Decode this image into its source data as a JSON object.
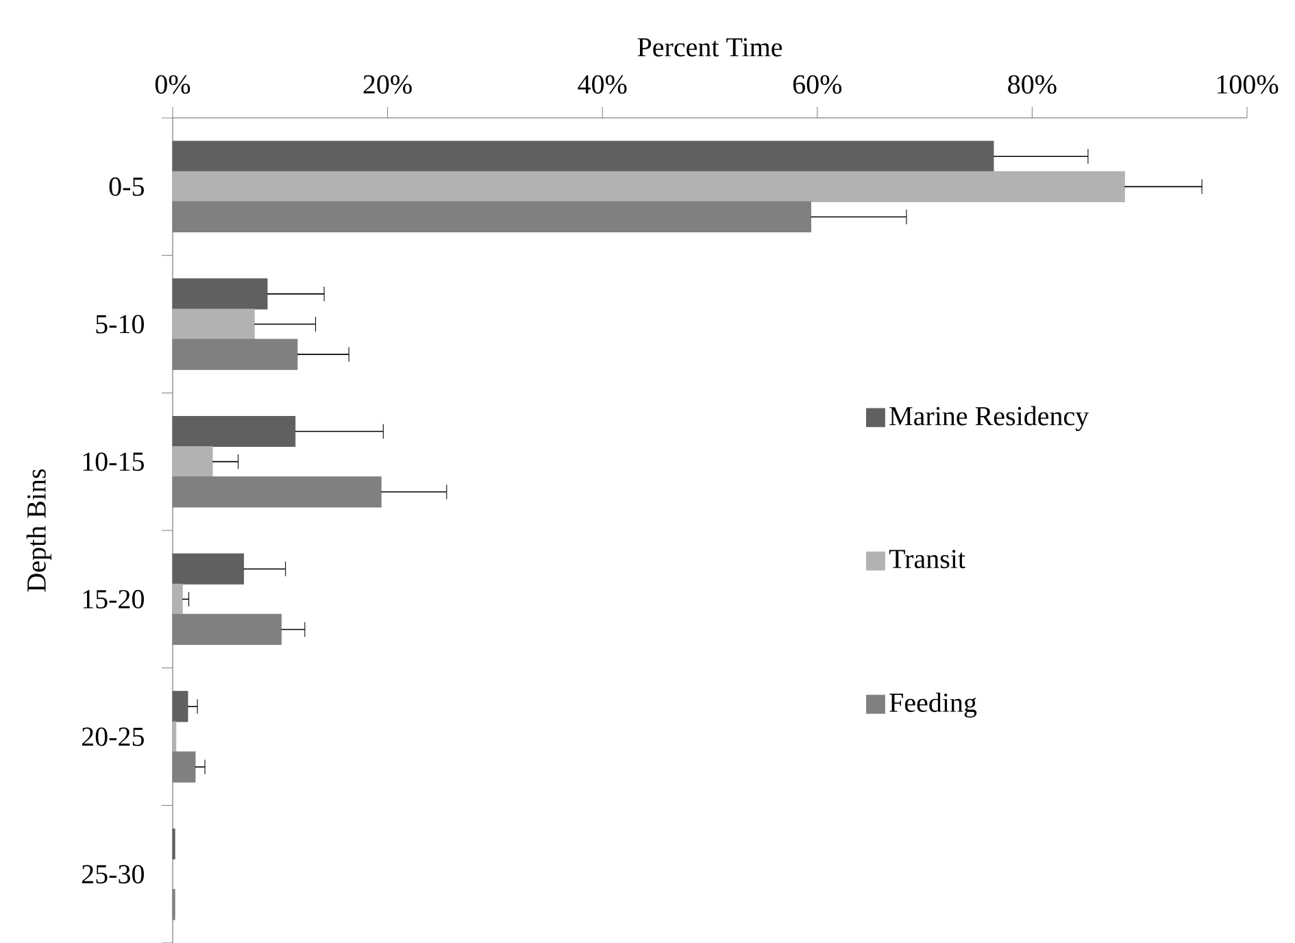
{
  "chart_data": {
    "type": "bar",
    "orientation": "horizontal",
    "xlabel": "Percent Time",
    "ylabel": "Depth Bins",
    "categories": [
      "0-5",
      "5-10",
      "10-15",
      "15-20",
      "20-25",
      "25-30"
    ],
    "series": [
      {
        "name": "Marine Residency",
        "color": "#606060",
        "values": [
          76.4,
          8.8,
          11.4,
          6.6,
          1.4,
          0.2
        ],
        "errors": [
          8.8,
          5.3,
          8.2,
          3.9,
          0.9,
          null
        ]
      },
      {
        "name": "Transit",
        "color": "#b2b2b2",
        "values": [
          88.6,
          7.6,
          3.7,
          0.9,
          0.3,
          0
        ],
        "errors": [
          7.2,
          5.7,
          2.4,
          0.6,
          null,
          null
        ]
      },
      {
        "name": "Feeding",
        "color": "#808080",
        "values": [
          59.4,
          11.6,
          19.4,
          10.1,
          2.1,
          0.2
        ],
        "errors": [
          8.9,
          4.8,
          6.1,
          2.2,
          0.9,
          null
        ]
      }
    ],
    "xlim": [
      0,
      100
    ],
    "xticks": [
      {
        "value": 0,
        "label": "0%"
      },
      {
        "value": 20,
        "label": "20%"
      },
      {
        "value": 40,
        "label": "40%"
      },
      {
        "value": 60,
        "label": "60%"
      },
      {
        "value": 80,
        "label": "80%"
      },
      {
        "value": 100,
        "label": "100%"
      }
    ],
    "legend": "right"
  }
}
